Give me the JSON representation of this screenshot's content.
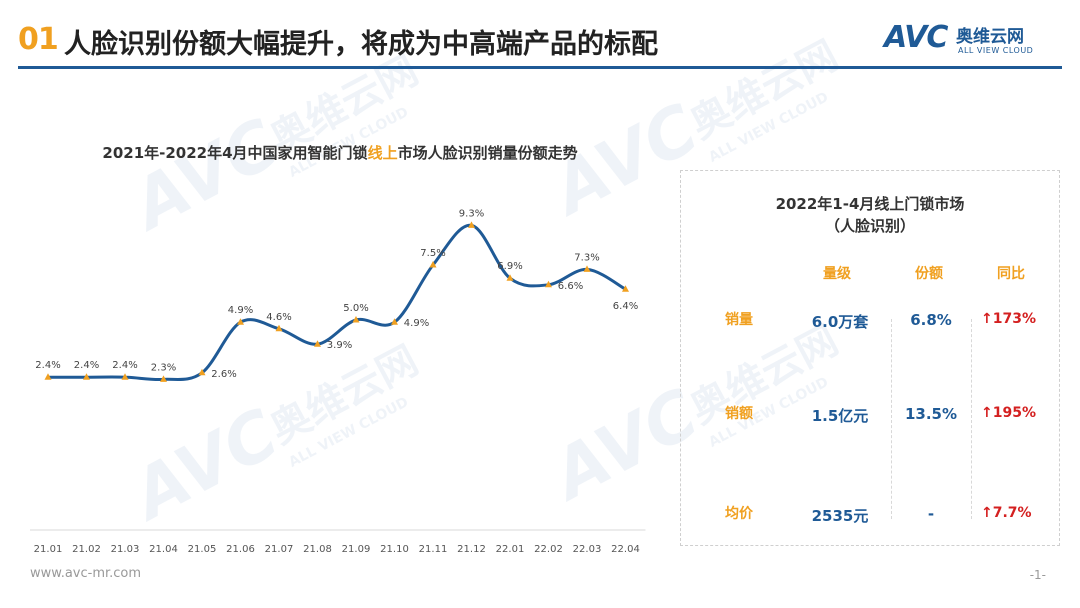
{
  "header": {
    "badge": "01",
    "title": "人脸识别份额大幅提升，将成为中高端产品的标配"
  },
  "logo": {
    "mark": "AVC",
    "cn": "奥维云网",
    "en": "ALL VIEW CLOUD"
  },
  "watermark": {
    "mark": "AVC",
    "cn": "奥维云网",
    "en": "ALL VIEW CLOUD"
  },
  "chart_title": {
    "prefix": "2021年-2022年4月中国家用智能门锁",
    "highlight": "线上",
    "suffix": "市场人脸识别销量份额走势"
  },
  "chart_data": {
    "type": "line",
    "categories": [
      "21.01",
      "21.02",
      "21.03",
      "21.04",
      "21.05",
      "21.06",
      "21.07",
      "21.08",
      "21.09",
      "21.10",
      "21.11",
      "21.12",
      "22.01",
      "22.02",
      "22.03",
      "22.04"
    ],
    "values": [
      2.4,
      2.4,
      2.4,
      2.3,
      2.6,
      4.9,
      4.6,
      3.9,
      5.0,
      4.9,
      7.5,
      9.3,
      6.9,
      6.6,
      7.3,
      6.4
    ],
    "labels": [
      "2.4%",
      "2.4%",
      "2.4%",
      "2.3%",
      "2.6%",
      "4.9%",
      "4.6%",
      "3.9%",
      "5.0%",
      "4.9%",
      "7.5%",
      "9.3%",
      "6.9%",
      "6.6%",
      "7.3%",
      "6.4%"
    ],
    "unit": "%",
    "ylim": [
      0,
      10
    ],
    "grid": false,
    "line_color": "#1f5a96",
    "marker_color": "#f0a020"
  },
  "summary": {
    "title_line1": "2022年1-4月线上门锁市场",
    "title_line2": "（人脸识别）",
    "columns": [
      "量级",
      "份额",
      "同比"
    ],
    "rows": [
      {
        "label": "销量",
        "volume": "6.0万套",
        "share": "6.8%",
        "yoy": "173%"
      },
      {
        "label": "销额",
        "volume": "1.5亿元",
        "share": "13.5%",
        "yoy": "195%"
      },
      {
        "label": "均价",
        "volume": "2535元",
        "share": "-",
        "yoy": "7.7%"
      }
    ],
    "up_arrow": "↑",
    "up_color": "#d42020"
  },
  "footer": {
    "url": "www.avc-mr.com",
    "page": "-1-"
  }
}
